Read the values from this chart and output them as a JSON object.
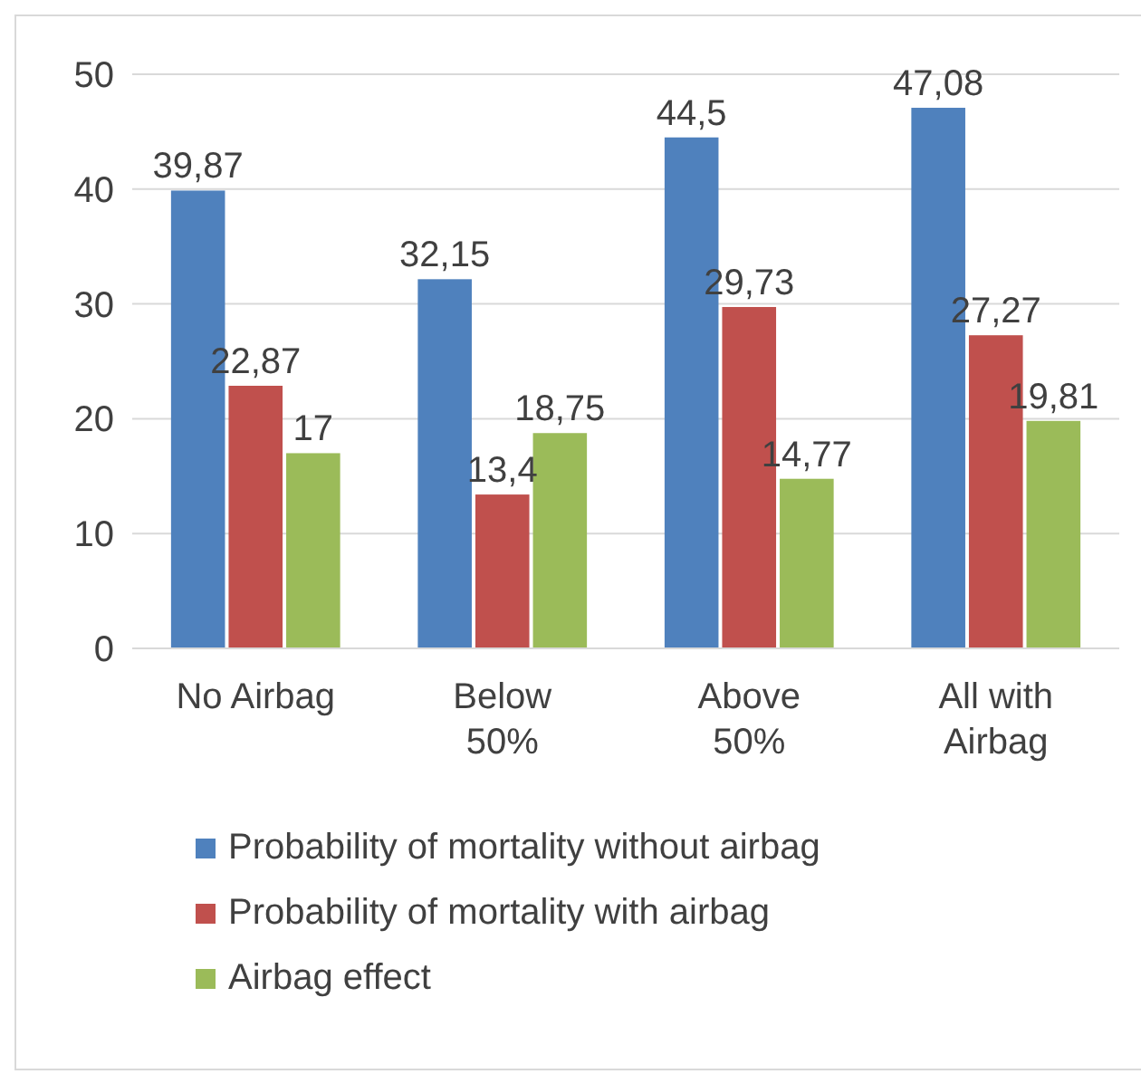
{
  "chart_data": {
    "type": "bar",
    "categories": [
      "No Airbag",
      "Below 50%",
      "Above 50%",
      "All with Airbag"
    ],
    "series": [
      {
        "name": "Probability of mortality without airbag",
        "color": "#4f81bd",
        "values": [
          39.87,
          32.15,
          44.5,
          47.08
        ],
        "value_labels": [
          "39,87",
          "32,15",
          "44,5",
          "47,08"
        ]
      },
      {
        "name": "Probability of mortality with airbag",
        "color": "#c0504d",
        "values": [
          22.87,
          13.4,
          29.73,
          27.27
        ],
        "value_labels": [
          "22,87",
          "13,4",
          "29,73",
          "27,27"
        ]
      },
      {
        "name": "Airbag effect",
        "color": "#9bbb59",
        "values": [
          17,
          18.75,
          14.77,
          19.81
        ],
        "value_labels": [
          "17",
          "18,75",
          "14,77",
          "19,81"
        ]
      }
    ],
    "ylim": [
      0,
      50
    ],
    "yticks": [
      0,
      10,
      20,
      30,
      40,
      50
    ],
    "grid": "y",
    "legend": "bottom"
  }
}
